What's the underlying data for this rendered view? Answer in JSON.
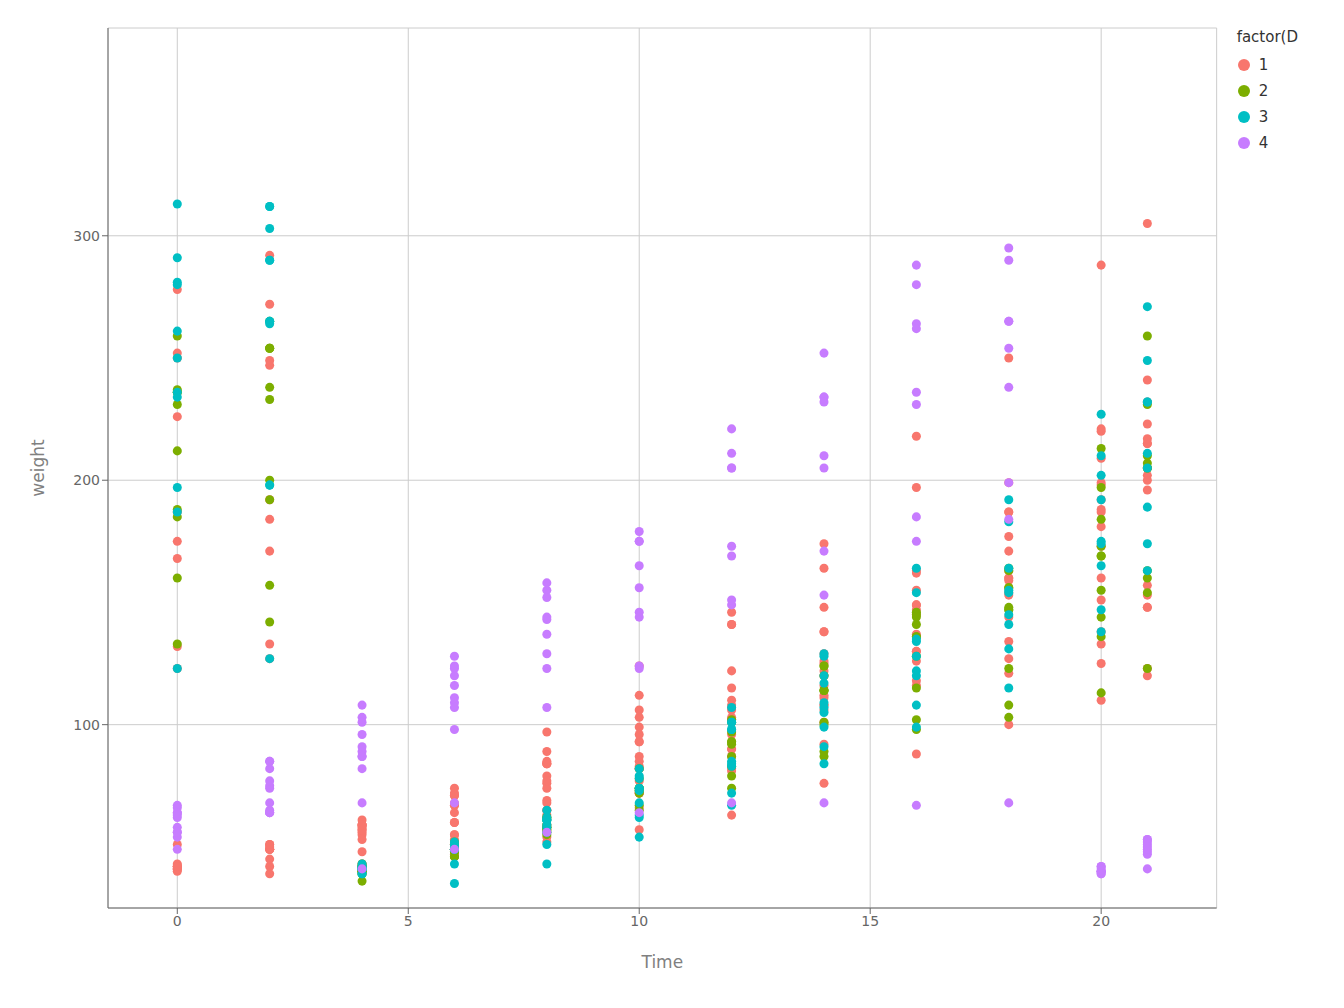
{
  "chart_data": {
    "type": "scatter",
    "xlabel": "Time",
    "ylabel": "weight",
    "legend_title": "factor(D",
    "legend": "right",
    "grid": true,
    "xlim": [
      -1.5,
      22.5
    ],
    "ylim": [
      25,
      385
    ],
    "xticks": [
      0,
      5,
      10,
      15,
      20
    ],
    "yticks": [
      100,
      200,
      300
    ],
    "series": [
      {
        "name": "1",
        "color": "#F8766D",
        "x": [
          0,
          2,
          4,
          6,
          8,
          10,
          12,
          14,
          16,
          18,
          20,
          21,
          0,
          2,
          4,
          6,
          8,
          10,
          12,
          14,
          16,
          18,
          20,
          21,
          0,
          2,
          4,
          6,
          8,
          10,
          12,
          14,
          16,
          18,
          20,
          21,
          0,
          2,
          4,
          6,
          8,
          10,
          12,
          14,
          16,
          18,
          20,
          21,
          0,
          2,
          4,
          6,
          8,
          10,
          12,
          14,
          16,
          18,
          20,
          21,
          0,
          2,
          4,
          6,
          8,
          10,
          12,
          14,
          16,
          18,
          20,
          21,
          0,
          2,
          4,
          6,
          8,
          10,
          12,
          14,
          16,
          18,
          20,
          21,
          0,
          2,
          4,
          6,
          8,
          10,
          12,
          14,
          16,
          18,
          20,
          21,
          0,
          2,
          4,
          6,
          8,
          10,
          12,
          14,
          0,
          2,
          4,
          6,
          8,
          10,
          12,
          14,
          16,
          18,
          20,
          21,
          0,
          2,
          4,
          6,
          8,
          10,
          12,
          14,
          0,
          2,
          4,
          6,
          8,
          10,
          12,
          14,
          16,
          18,
          20,
          21,
          0,
          2,
          4,
          6,
          8,
          10,
          12,
          14,
          16,
          18,
          20,
          21,
          0,
          2,
          4,
          6,
          8,
          10,
          12,
          14,
          16,
          18,
          20,
          21,
          0,
          2,
          4,
          6,
          8,
          10,
          12,
          14,
          16,
          18,
          20,
          21,
          0,
          2,
          4,
          6,
          8,
          10,
          12,
          14,
          16,
          18,
          20,
          21,
          0,
          2,
          4,
          6,
          8,
          10,
          12,
          14,
          16,
          18,
          20,
          21,
          0,
          2,
          4,
          6,
          8,
          10,
          12,
          14,
          16,
          18,
          20,
          21,
          0,
          2,
          4,
          6,
          8,
          10,
          12,
          14,
          16,
          18,
          20,
          21
        ],
        "values": [
          42,
          51,
          59,
          64,
          76,
          93,
          106,
          125,
          149,
          171,
          199,
          205,
          40,
          49,
          58,
          72,
          84,
          103,
          122,
          138,
          162,
          187,
          209,
          215,
          43,
          39,
          55,
          67,
          84,
          99,
          115,
          138,
          163,
          187,
          198,
          202,
          42,
          49,
          56,
          67,
          74,
          87,
          102,
          108,
          136,
          154,
          160,
          157,
          41,
          42,
          48,
          60,
          79,
          106,
          141,
          164,
          197,
          199,
          220,
          223,
          41,
          49,
          59,
          74,
          97,
          124,
          141,
          148,
          155,
          160,
          188,
          200,
          41,
          49,
          57,
          71,
          89,
          112,
          146,
          174,
          218,
          250,
          288,
          305,
          42,
          50,
          61,
          71,
          84,
          93,
          110,
          116,
          126,
          134,
          125,
          123,
          42,
          51,
          59,
          68,
          85,
          96,
          90,
          92,
          51,
          45,
          53,
          60,
          65,
          72,
          82,
          112,
          130,
          160,
          192,
          232,
          278,
          272,
          41,
          49,
          65,
          82,
          107,
          129,
          123,
          127,
          57,
          51,
          54,
          72,
          90,
          101,
          130,
          153,
          181,
          217,
          252,
          292,
          59,
          55,
          77,
          85,
          103,
          120,
          149,
          177,
          221,
          241,
          250,
          249,
          40,
          46,
          52,
          57,
          63,
          76,
          88,
          100,
          110,
          120,
          132,
          133,
          40,
          47,
          59,
          72,
          87,
          106,
          116,
          121,
          133,
          148,
          187,
          192,
          42,
          53,
          68,
          82,
          108,
          126,
          147,
          159,
          173,
          196,
          226,
          247,
          41,
          49,
          58,
          66,
          81,
          108,
          118,
          127,
          138,
          148,
          168,
          171,
          43,
          51,
          63,
          77,
          96,
          111,
          137,
          144,
          151,
          153,
          175,
          184,
          42,
          55,
          69,
          83,
          102,
          122,
          145,
          163,
          187,
          215
        ]
      },
      {
        "name": "2",
        "color": "#7CAE00",
        "x": [
          0,
          2,
          4,
          6,
          8,
          10,
          12,
          14,
          16,
          18,
          20,
          21,
          0,
          2,
          4,
          6,
          8,
          10,
          12,
          14,
          16,
          18,
          20,
          21,
          0,
          2,
          4,
          6,
          8,
          10,
          12,
          14,
          16,
          18,
          20,
          21,
          0,
          2,
          4,
          6,
          8,
          10,
          12,
          14,
          16,
          18,
          20,
          21,
          0,
          2,
          4,
          6,
          8,
          10,
          12,
          14,
          16,
          18,
          20,
          21,
          0,
          2,
          4,
          6,
          8,
          10,
          12,
          14,
          16,
          18,
          20,
          21,
          0,
          2,
          4,
          6,
          8,
          10,
          12,
          14,
          16,
          18,
          20,
          21,
          0,
          2,
          4,
          6,
          8,
          10,
          12,
          14,
          16,
          18,
          20,
          21,
          0,
          2,
          4,
          6,
          8,
          10,
          12,
          14,
          16,
          18,
          20,
          21,
          0,
          2,
          4,
          6,
          8,
          10,
          12,
          14,
          16,
          18,
          20,
          21
        ],
        "values": [
          237,
          254,
          40,
          49,
          62,
          78,
          102,
          124,
          146,
          164,
          197,
          231,
          259,
          265,
          40,
          48,
          57,
          74,
          93,
          114,
          136,
          147,
          169,
          205,
          236,
          254,
          39,
          46,
          58,
          73,
          87,
          100,
          115,
          123,
          144,
          163,
          185,
          192,
          39,
          46,
          58,
          73,
          92,
          114,
          145,
          156,
          184,
          207,
          212,
          233,
          42,
          48,
          57,
          74,
          93,
          114,
          136,
          147,
          169,
          205,
          236,
          254,
          40,
          49,
          59,
          74,
          97,
          124,
          141,
          148,
          155,
          160,
          188,
          200,
          36,
          52,
          62,
          82,
          101,
          120,
          144,
          156,
          173,
          210,
          231,
          238,
          42,
          49,
          56,
          67,
          74,
          87,
          102,
          108,
          136,
          154,
          160,
          157,
          42,
          51,
          61,
          72,
          83,
          89,
          98,
          103,
          113,
          123,
          133,
          142,
          43,
          48,
          55,
          65,
          79,
          101,
          128,
          163,
          213,
          259
        ]
      },
      {
        "name": "3",
        "color": "#00BFC4",
        "x": [
          0,
          2,
          4,
          6,
          8,
          10,
          12,
          14,
          16,
          18,
          20,
          21,
          0,
          2,
          4,
          6,
          8,
          10,
          12,
          14,
          16,
          18,
          20,
          21,
          0,
          2,
          4,
          6,
          8,
          10,
          12,
          14,
          16,
          18,
          20,
          21,
          0,
          2,
          4,
          6,
          8,
          10,
          12,
          14,
          16,
          18,
          20,
          21,
          0,
          2,
          4,
          6,
          8,
          10,
          12,
          14,
          16,
          18,
          20,
          21,
          0,
          2,
          4,
          6,
          8,
          10,
          12,
          14,
          16,
          18,
          20,
          21,
          0,
          2,
          4,
          6,
          8,
          10,
          12,
          14,
          16,
          18,
          20,
          21,
          0,
          2,
          4,
          6,
          8,
          10,
          12,
          14,
          16,
          18,
          20,
          21,
          0,
          2,
          4,
          6,
          8,
          10,
          12,
          14,
          0,
          2,
          4,
          6,
          8,
          10,
          12,
          14,
          16,
          18,
          20,
          21,
          0,
          2,
          4,
          6
        ],
        "values": [
          313,
          303,
          39,
          35,
          43,
          54,
          67,
          84,
          99,
          115,
          138,
          163,
          187,
          198,
          39,
          43,
          51,
          63,
          85,
          107,
          134,
          164,
          202,
          232,
          261,
          265,
          41,
          49,
          56,
          62,
          72,
          91,
          108,
          131,
          165,
          189,
          236,
          265,
          42,
          50,
          58,
          73,
          84,
          105,
          122,
          155,
          175,
          205,
          234,
          264,
          41,
          49,
          61,
          74,
          98,
          109,
          128,
          154,
          192,
          232,
          280,
          290,
          41,
          49,
          62,
          79,
          101,
          128,
          164,
          192,
          227,
          271,
          291,
          312,
          41,
          50,
          61,
          78,
          98,
          117,
          135,
          141,
          147,
          174,
          197,
          198,
          42,
          51,
          59,
          68,
          83,
          99,
          120,
          145,
          174,
          211,
          250,
          290,
          41,
          50,
          65,
          82,
          107,
          129,
          123,
          127,
          43,
          52,
          61,
          74,
          101,
          120,
          154,
          183,
          210,
          249,
          281,
          312,
          41,
          49
        ]
      },
      {
        "name": "4",
        "color": "#C77CFF",
        "x": [
          0,
          2,
          4,
          6,
          0,
          2,
          4,
          6,
          8,
          10,
          12,
          14,
          16,
          18,
          20,
          21,
          0,
          2,
          4,
          6,
          8,
          10,
          12,
          14,
          16,
          18,
          20,
          21,
          0,
          2,
          4,
          6,
          8,
          10,
          12,
          14,
          16,
          18,
          20,
          21,
          0,
          2,
          4,
          6,
          8,
          10,
          12,
          14,
          16,
          18,
          20,
          21,
          0,
          2,
          4,
          6,
          8,
          10,
          12,
          14,
          16,
          18,
          20,
          21,
          0,
          2,
          4,
          6,
          8,
          10,
          12,
          14,
          16,
          18,
          20,
          21,
          0,
          2,
          4,
          6,
          8,
          10,
          12,
          14,
          16,
          18,
          20,
          21,
          0,
          2,
          4,
          6,
          8,
          10,
          12,
          14,
          16,
          18,
          20,
          21,
          0,
          2,
          4,
          6,
          8,
          10,
          12,
          14,
          16,
          18,
          20,
          21,
          0,
          2,
          4,
          6,
          8,
          10
        ],
        "values": [
          56,
          64,
          68,
          68,
          67,
          68,
          41,
          49,
          56,
          64,
          68,
          68,
          67,
          68,
          42,
          48,
          58,
          74,
          89,
          98,
          107,
          124,
          149,
          171,
          185,
          199,
          42,
          51,
          66,
          85,
          103,
          124,
          155,
          175,
          205,
          234,
          264,
          265,
          40,
          53,
          64,
          85,
          108,
          128,
          152,
          165,
          211,
          252,
          288,
          295,
          40,
          52,
          62,
          82,
          101,
          120,
          144,
          156,
          173,
          210,
          231,
          238,
          40,
          47,
          54,
          64,
          87,
          109,
          123,
          146,
          169,
          205,
          236,
          254,
          40,
          53,
          64,
          75,
          91,
          116,
          143,
          175,
          205,
          234,
          262,
          265,
          39,
          50,
          63,
          77,
          96,
          111,
          137,
          144,
          151,
          153,
          175,
          184,
          41,
          49,
          56,
          64,
          87,
          123,
          158,
          179,
          221,
          232,
          280,
          290,
          39,
          41,
          49,
          65,
          82,
          107,
          129,
          123
        ]
      }
    ]
  }
}
